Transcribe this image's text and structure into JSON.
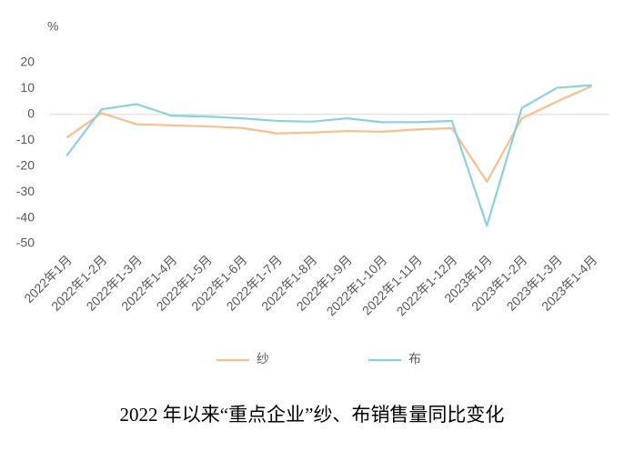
{
  "chart_data": {
    "type": "line",
    "title": "2022 年以来“重点企业”纱、布销售量同比变化",
    "y_label": "%",
    "categories": [
      "2022年1月",
      "2022年1-2月",
      "2022年1-3月",
      "2022年1-4月",
      "2022年1-5月",
      "2022年1-6月",
      "2022年1-7月",
      "2022年1-8月",
      "2022年1-9月",
      "2022年1-10月",
      "2022年1-11月",
      "2022年1-12月",
      "2023年1月",
      "2023年1-2月",
      "2023年1-3月",
      "2023年1-4月"
    ],
    "series": [
      {
        "name": "纱",
        "color": "#f8be90",
        "values": [
          -9,
          0.5,
          -3.8,
          -4.2,
          -4.6,
          -5.2,
          -7.3,
          -7,
          -6.4,
          -6.7,
          -5.8,
          -5.3,
          -26,
          -1.5,
          5,
          11
        ]
      },
      {
        "name": "布",
        "color": "#8dcfdf",
        "values": [
          -16,
          2,
          4,
          -0.5,
          -0.8,
          -1.5,
          -2.5,
          -2.8,
          -1.5,
          -3,
          -3,
          -2.5,
          -43,
          2.5,
          10.3,
          11.3
        ]
      }
    ],
    "ylim": [
      -50,
      20
    ],
    "yticks": [
      20,
      10,
      0,
      -10,
      -20,
      -30,
      -40,
      -50
    ],
    "grid": false
  }
}
